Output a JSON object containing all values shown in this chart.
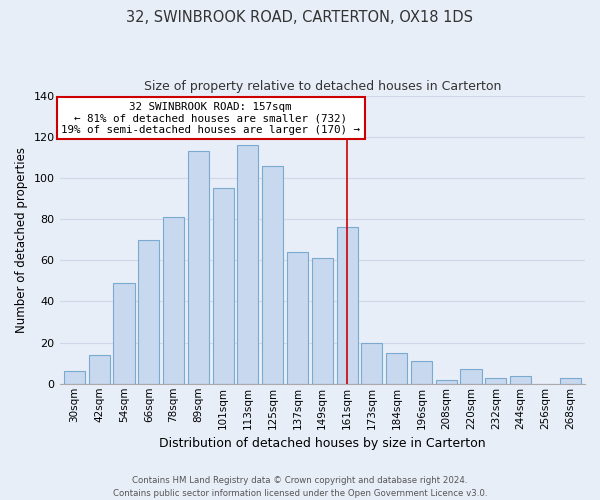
{
  "title": "32, SWINBROOK ROAD, CARTERTON, OX18 1DS",
  "subtitle": "Size of property relative to detached houses in Carterton",
  "xlabel": "Distribution of detached houses by size in Carterton",
  "ylabel": "Number of detached properties",
  "bar_labels": [
    "30sqm",
    "42sqm",
    "54sqm",
    "66sqm",
    "78sqm",
    "89sqm",
    "101sqm",
    "113sqm",
    "125sqm",
    "137sqm",
    "149sqm",
    "161sqm",
    "173sqm",
    "184sqm",
    "196sqm",
    "208sqm",
    "220sqm",
    "232sqm",
    "244sqm",
    "256sqm",
    "268sqm"
  ],
  "bar_values": [
    6,
    14,
    49,
    70,
    81,
    113,
    95,
    116,
    106,
    64,
    61,
    76,
    20,
    15,
    11,
    2,
    7,
    3,
    4,
    0,
    3
  ],
  "bar_color": "#c8d8ee",
  "bar_edge_color": "#7aaad0",
  "vline_x_index": 11,
  "annotation_title": "32 SWINBROOK ROAD: 157sqm",
  "annotation_line1": "← 81% of detached houses are smaller (732)",
  "annotation_line2": "19% of semi-detached houses are larger (170) →",
  "annotation_box_color": "#ffffff",
  "annotation_box_edge_color": "#cc0000",
  "vline_color": "#cc0000",
  "footer1": "Contains HM Land Registry data © Crown copyright and database right 2024.",
  "footer2": "Contains public sector information licensed under the Open Government Licence v3.0.",
  "ylim": [
    0,
    140
  ],
  "yticks": [
    0,
    20,
    40,
    60,
    80,
    100,
    120,
    140
  ],
  "grid_color": "#d0d8e8",
  "bg_color": "#e8eef8"
}
